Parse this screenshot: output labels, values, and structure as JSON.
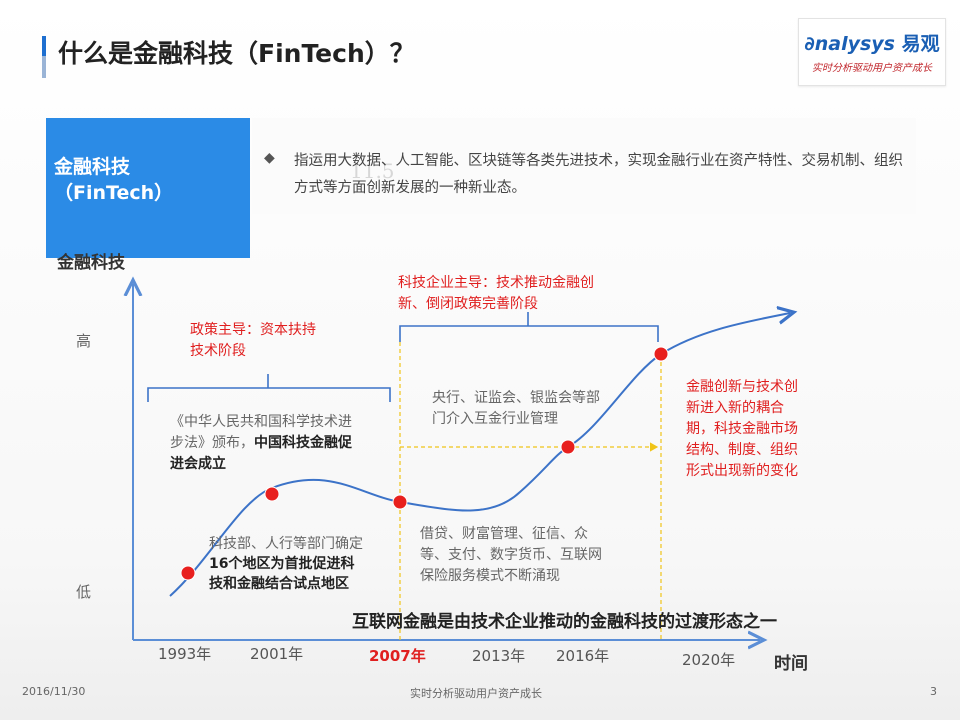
{
  "header": {
    "title": "什么是金融科技（FinTech）？",
    "logo_brand_latin": "nalysys",
    "logo_brand_initial": "∂",
    "logo_brand_cn": "易观",
    "logo_slogan": "实时分析驱动用户资产成长"
  },
  "definition": {
    "term_line1": "金融科技",
    "term_line2": "（FinTech）",
    "bullet_glyph": "◆",
    "text": "指运用大数据、人工智能、区块链等各类先进技术，实现金融行业在资产特性、交易机制、组织方式等方面创新发展的一种新业态。",
    "watermark": "11.5"
  },
  "diagram": {
    "y_axis_title": "金融科技",
    "y_high": "高",
    "y_low": "低",
    "x_axis_title": "时间",
    "x_ticks": [
      "1993年",
      "2001年",
      "2007年",
      "2013年",
      "2016年",
      "2020年"
    ],
    "x_tick_highlight": "2007年",
    "phase1_label_l1": "政策主导：资本扶持",
    "phase1_label_l2": "技术阶段",
    "phase2_label_l1": "科技企业主导：技术推动金融创",
    "phase2_label_l2": "新、倒闭政策完善阶段",
    "note_1993_l1": "《中华人民共和国科学技术进",
    "note_1993_l2a": "步法》颁布，",
    "note_1993_l2b": "中国科技金融促",
    "note_1993_l3": "进会成立",
    "note_2001_l1": "科技部、人行等部门确定",
    "note_2001_l2": "16个地区为首批促进科",
    "note_2001_l3": "技和金融结合试点地区",
    "note_2013_l1": "央行、证监会、银监会等部",
    "note_2013_l2": "门介入互金行业管理",
    "note_2007_l1": "借贷、财富管理、征信、众",
    "note_2007_l2": "等、支付、数字货币、互联网",
    "note_2007_l3": "保险服务模式不断涌现",
    "note_2020_l1": "金融创新与技术创",
    "note_2020_l2": "新进入新的耦合",
    "note_2020_l3": "期，科技金融市场",
    "note_2020_l4": "结构、制度、组织",
    "note_2020_l5": "形式出现新的变化",
    "summary": "互联网金融是由技术企业推动的金融科技的过渡形态之一",
    "colors": {
      "axis": "#5b8ed6",
      "curve": "#3c73c8",
      "dot": "#e8201e",
      "dash": "#f0c419",
      "red_text": "#e01f1f"
    }
  },
  "footer": {
    "date": "2016/11/30",
    "center": "实时分析驱动用户资产成长",
    "page": "3"
  }
}
